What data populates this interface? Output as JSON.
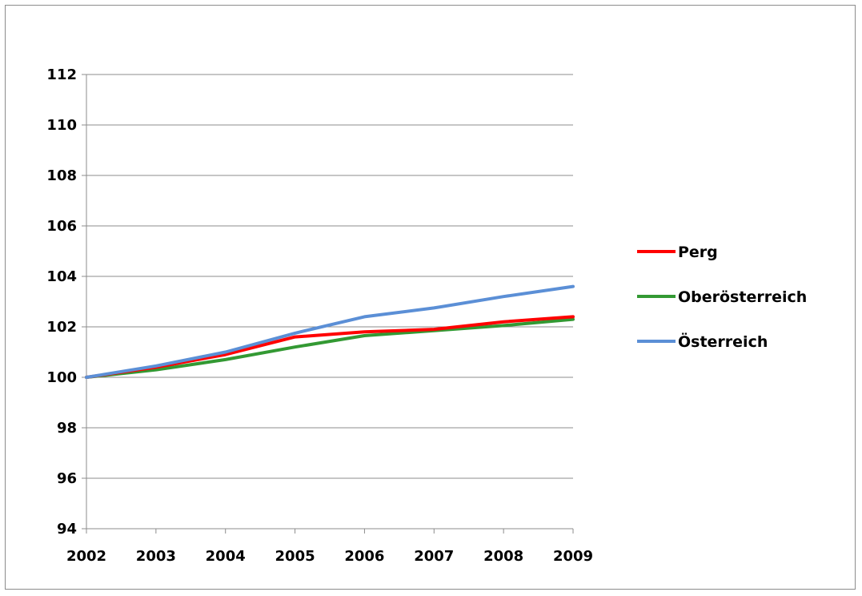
{
  "chart_data": {
    "type": "line",
    "x": [
      "2002",
      "2003",
      "2004",
      "2005",
      "2006",
      "2007",
      "2008",
      "2009"
    ],
    "series": [
      {
        "name": "Perg",
        "color": "#ff0000",
        "values": [
          100.0,
          100.4,
          100.9,
          101.6,
          101.8,
          101.9,
          102.2,
          102.4
        ]
      },
      {
        "name": "Oberösterreich",
        "color": "#339933",
        "values": [
          100.0,
          100.3,
          100.7,
          101.2,
          101.65,
          101.85,
          102.05,
          102.3
        ]
      },
      {
        "name": "Österreich",
        "color": "#5b8fd6",
        "values": [
          100.0,
          100.45,
          101.0,
          101.75,
          102.4,
          102.75,
          103.2,
          103.6
        ]
      }
    ],
    "yticks": [
      "94",
      "96",
      "98",
      "100",
      "102",
      "104",
      "106",
      "108",
      "110",
      "112"
    ],
    "ylim": [
      94,
      112
    ],
    "title": "",
    "xlabel": "",
    "ylabel": "",
    "grid": true,
    "legend_position": "right"
  }
}
